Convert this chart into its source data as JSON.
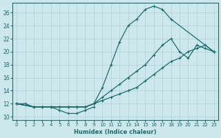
{
  "xlabel": "Humidex (Indice chaleur)",
  "bg_color": "#cce8ed",
  "grid_color": "#b0cfd8",
  "line_color": "#1a6b6b",
  "xlim": [
    -0.5,
    23.5
  ],
  "ylim": [
    9.5,
    27.5
  ],
  "yticks": [
    10,
    12,
    14,
    16,
    18,
    20,
    22,
    24,
    26
  ],
  "xticks": [
    0,
    1,
    2,
    3,
    4,
    5,
    6,
    7,
    8,
    9,
    10,
    11,
    12,
    13,
    14,
    15,
    16,
    17,
    18,
    19,
    20,
    21,
    22,
    23
  ],
  "line1_x": [
    0,
    1,
    2,
    3,
    4,
    5,
    6,
    7,
    8,
    9,
    10,
    11,
    12,
    13,
    14,
    15,
    16,
    17,
    18,
    23
  ],
  "line1_y": [
    12,
    12,
    11.5,
    11.5,
    11.5,
    11.5,
    11.5,
    11.5,
    11.5,
    12,
    14.5,
    18,
    21.5,
    24,
    25,
    26.5,
    27,
    26.5,
    25,
    20
  ],
  "line2_x": [
    0,
    2,
    3,
    4,
    5,
    6,
    7,
    8,
    9,
    10,
    11,
    12,
    13,
    14,
    15,
    16,
    17,
    18,
    19,
    20,
    21,
    22,
    23
  ],
  "line2_y": [
    12,
    11.5,
    11.5,
    11.5,
    11.5,
    11.5,
    11.5,
    11.5,
    12,
    13,
    14,
    15,
    16,
    17,
    18,
    19.5,
    21,
    22,
    20,
    19,
    21,
    20.5,
    20
  ],
  "line3_x": [
    0,
    2,
    3,
    4,
    5,
    6,
    7,
    8,
    9,
    10,
    11,
    12,
    13,
    14,
    15,
    16,
    17,
    18,
    19,
    20,
    21,
    22,
    23
  ],
  "line3_y": [
    12,
    11.5,
    11.5,
    11.5,
    11.5,
    11.5,
    11.5,
    11.5,
    12,
    12.5,
    13,
    13.5,
    14,
    14.5,
    15.5,
    16.5,
    17.5,
    18.5,
    19,
    20,
    20.5,
    21,
    20
  ],
  "line4_x": [
    0,
    2,
    3,
    4,
    5,
    6,
    7,
    8,
    9
  ],
  "line4_y": [
    12,
    11.5,
    11.5,
    11.5,
    11,
    10.5,
    10.5,
    11,
    11.5
  ]
}
